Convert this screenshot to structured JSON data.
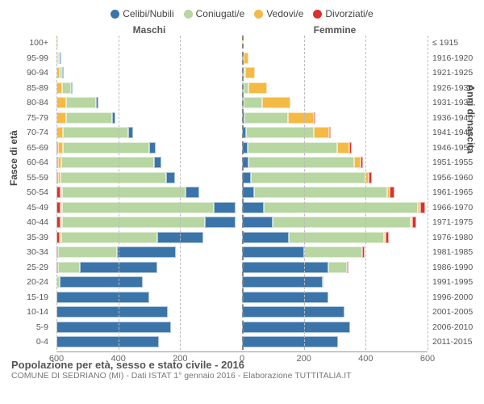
{
  "legend": [
    {
      "label": "Celibi/Nubili",
      "color": "#3b74a8"
    },
    {
      "label": "Coniugati/e",
      "color": "#b7d6a1"
    },
    {
      "label": "Vedovi/e",
      "color": "#f5b946"
    },
    {
      "label": "Divorziati/e",
      "color": "#d93030"
    }
  ],
  "headers": {
    "male": "Maschi",
    "female": "Femmine"
  },
  "axis_titles": {
    "left": "Fasce di età",
    "right": "Anni di nascita"
  },
  "xmax": 600,
  "xticks": [
    600,
    400,
    200,
    0,
    200,
    400,
    600
  ],
  "age_labels": [
    "100+",
    "95-99",
    "90-94",
    "85-89",
    "80-84",
    "75-79",
    "70-74",
    "65-69",
    "60-64",
    "55-59",
    "50-54",
    "45-49",
    "40-44",
    "35-39",
    "30-34",
    "25-29",
    "20-24",
    "15-19",
    "10-14",
    "5-9",
    "0-4"
  ],
  "birth_labels": [
    "≤ 1915",
    "1916-1920",
    "1921-1925",
    "1926-1930",
    "1931-1935",
    "1936-1940",
    "1941-1945",
    "1946-1950",
    "1951-1955",
    "1956-1960",
    "1961-1965",
    "1966-1970",
    "1971-1975",
    "1976-1980",
    "1981-1985",
    "1986-1990",
    "1991-1995",
    "1996-2000",
    "2001-2005",
    "2006-2010",
    "2011-2015"
  ],
  "colors": {
    "single": "#3b74a8",
    "married": "#b7d6a1",
    "widowed": "#f5b946",
    "divorced": "#d93030",
    "grid": "#bbbbbb",
    "bg": "#ffffff"
  },
  "male": [
    {
      "s": 0,
      "m": 0,
      "w": 3,
      "d": 0
    },
    {
      "s": 2,
      "m": 2,
      "w": 6,
      "d": 0
    },
    {
      "s": 3,
      "m": 8,
      "w": 10,
      "d": 0
    },
    {
      "s": 5,
      "m": 30,
      "w": 18,
      "d": 0
    },
    {
      "s": 8,
      "m": 95,
      "w": 32,
      "d": 0
    },
    {
      "s": 10,
      "m": 150,
      "w": 30,
      "d": 0
    },
    {
      "s": 15,
      "m": 210,
      "w": 22,
      "d": 0
    },
    {
      "s": 20,
      "m": 280,
      "w": 15,
      "d": 2
    },
    {
      "s": 25,
      "m": 300,
      "w": 10,
      "d": 4
    },
    {
      "s": 30,
      "m": 340,
      "w": 8,
      "d": 6
    },
    {
      "s": 45,
      "m": 400,
      "w": 5,
      "d": 12
    },
    {
      "s": 70,
      "m": 490,
      "w": 4,
      "d": 14
    },
    {
      "s": 100,
      "m": 460,
      "w": 3,
      "d": 14
    },
    {
      "s": 150,
      "m": 310,
      "w": 2,
      "d": 10
    },
    {
      "s": 190,
      "m": 190,
      "w": 0,
      "d": 6
    },
    {
      "s": 250,
      "m": 70,
      "w": 0,
      "d": 2
    },
    {
      "s": 270,
      "m": 10,
      "w": 0,
      "d": 0
    },
    {
      "s": 300,
      "m": 0,
      "w": 0,
      "d": 0
    },
    {
      "s": 360,
      "m": 0,
      "w": 0,
      "d": 0
    },
    {
      "s": 370,
      "m": 0,
      "w": 0,
      "d": 0
    },
    {
      "s": 330,
      "m": 0,
      "w": 0,
      "d": 0
    }
  ],
  "female": [
    {
      "s": 0,
      "m": 0,
      "w": 6,
      "d": 0
    },
    {
      "s": 2,
      "m": 0,
      "w": 15,
      "d": 0
    },
    {
      "s": 3,
      "m": 4,
      "w": 30,
      "d": 0
    },
    {
      "s": 4,
      "m": 15,
      "w": 60,
      "d": 0
    },
    {
      "s": 5,
      "m": 60,
      "w": 90,
      "d": 0
    },
    {
      "s": 8,
      "m": 140,
      "w": 85,
      "d": 2
    },
    {
      "s": 12,
      "m": 220,
      "w": 50,
      "d": 4
    },
    {
      "s": 18,
      "m": 290,
      "w": 40,
      "d": 6
    },
    {
      "s": 22,
      "m": 340,
      "w": 22,
      "d": 8
    },
    {
      "s": 28,
      "m": 370,
      "w": 12,
      "d": 10
    },
    {
      "s": 40,
      "m": 430,
      "w": 8,
      "d": 14
    },
    {
      "s": 70,
      "m": 500,
      "w": 6,
      "d": 16
    },
    {
      "s": 100,
      "m": 445,
      "w": 4,
      "d": 14
    },
    {
      "s": 150,
      "m": 310,
      "w": 2,
      "d": 10
    },
    {
      "s": 200,
      "m": 190,
      "w": 0,
      "d": 6
    },
    {
      "s": 280,
      "m": 60,
      "w": 0,
      "d": 2
    },
    {
      "s": 260,
      "m": 4,
      "w": 0,
      "d": 0
    },
    {
      "s": 280,
      "m": 0,
      "w": 0,
      "d": 0
    },
    {
      "s": 330,
      "m": 0,
      "w": 0,
      "d": 0
    },
    {
      "s": 350,
      "m": 0,
      "w": 0,
      "d": 0
    },
    {
      "s": 310,
      "m": 0,
      "w": 0,
      "d": 0
    }
  ],
  "footer": {
    "title": "Popolazione per età, sesso e stato civile - 2016",
    "subtitle": "COMUNE DI SEDRIANO (MI) - Dati ISTAT 1° gennaio 2016 - Elaborazione TUTTITALIA.IT"
  }
}
